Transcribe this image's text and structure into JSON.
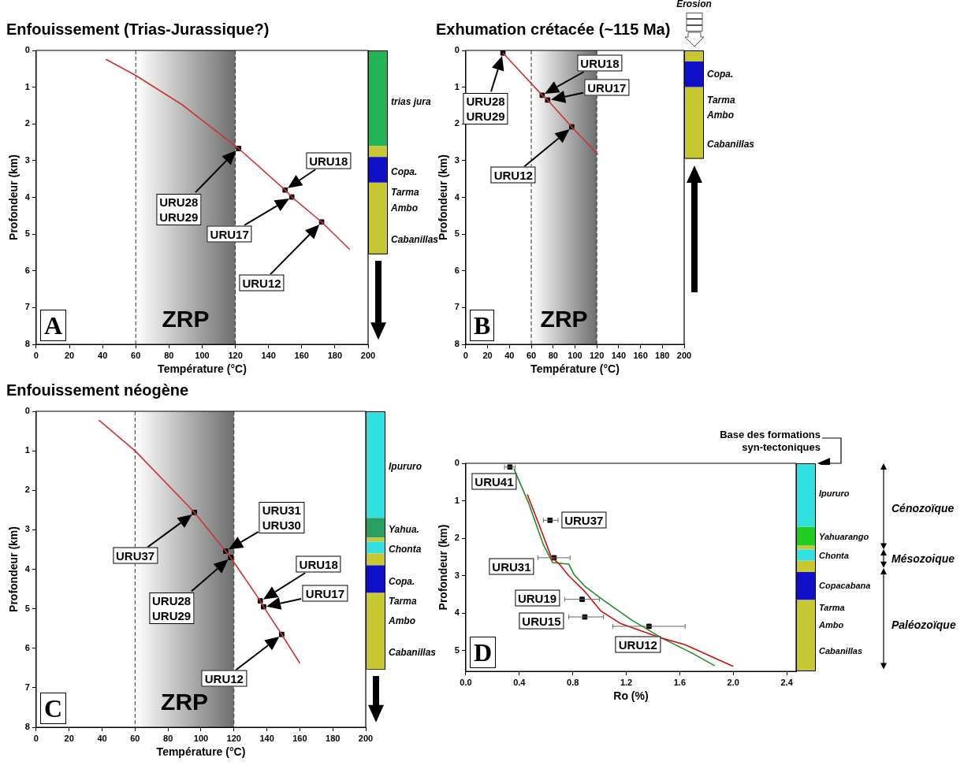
{
  "chart_data": [
    {
      "type": "line",
      "title": "Enfouissement (Trias-Jurassique?)",
      "xlabel": "Température (°C)",
      "ylabel": "Profondeur (km)",
      "xlim": [
        0,
        200
      ],
      "ylim": [
        8,
        0
      ],
      "xticks": [
        0,
        20,
        40,
        60,
        80,
        100,
        120,
        140,
        160,
        180,
        200
      ],
      "yticks": [
        0,
        1,
        2,
        3,
        4,
        5,
        6,
        7,
        8
      ],
      "series": [
        {
          "type": "line",
          "color": "#cc3333",
          "marker": "none",
          "x": [
            42,
            60,
            88,
            122,
            150,
            154,
            172,
            189
          ],
          "values": [
            0.24,
            0.68,
            1.48,
            2.67,
            3.8,
            3.99,
            4.67,
            5.42
          ]
        },
        {
          "type": "scatter",
          "color": "#000000",
          "marker": "square",
          "x": [
            122,
            150,
            154,
            172
          ],
          "values": [
            2.67,
            3.8,
            3.99,
            4.67
          ]
        }
      ],
      "bands": [
        {
          "axis": "x",
          "from": 60,
          "to": 120,
          "label": "ZRP",
          "color": "#6e6e6e"
        }
      ],
      "annotations": [
        "URU28\nURU29",
        "URU18",
        "URU17",
        "URU12",
        "trias jura",
        "Copa.",
        "Tarma",
        "Ambo",
        "Cabanillas",
        "A"
      ]
    },
    {
      "type": "line",
      "title": "Exhumation crétacée (~115 Ma)",
      "xlabel": "Température (°C)",
      "ylabel": "Profondeur (km)",
      "xlim": [
        0,
        200
      ],
      "ylim": [
        8,
        0
      ],
      "xticks": [
        0,
        20,
        40,
        60,
        80,
        100,
        120,
        140,
        160,
        180,
        200
      ],
      "yticks": [
        0,
        1,
        2,
        3,
        4,
        5,
        6,
        7,
        8
      ],
      "series": [
        {
          "type": "line",
          "color": "#cc3333",
          "marker": "none",
          "x": [
            34,
            70,
            75,
            97,
            121
          ],
          "values": [
            0.07,
            1.22,
            1.35,
            2.08,
            2.83
          ]
        },
        {
          "type": "scatter",
          "color": "#000000",
          "marker": "square",
          "x": [
            34,
            70,
            75,
            97
          ],
          "values": [
            0.07,
            1.22,
            1.35,
            2.08
          ]
        }
      ],
      "bands": [
        {
          "axis": "x",
          "from": 60,
          "to": 120,
          "label": "ZRP",
          "color": "#6e6e6e"
        }
      ],
      "annotations": [
        "URU28\nURU29",
        "URU18",
        "URU17",
        "URU12",
        "Copa.",
        "Tarma",
        "Ambo",
        "Cabanillas",
        "B",
        "Erosion"
      ]
    },
    {
      "type": "line",
      "title": "Enfouissement néogène",
      "xlabel": "Température (°C)",
      "ylabel": "Profondeur (km)",
      "xlim": [
        0,
        200
      ],
      "ylim": [
        8,
        0
      ],
      "xticks": [
        0,
        20,
        40,
        60,
        80,
        100,
        120,
        140,
        160,
        180,
        200
      ],
      "yticks": [
        0,
        1,
        2,
        3,
        4,
        5,
        6,
        7,
        8
      ],
      "series": [
        {
          "type": "line",
          "color": "#cc3333",
          "marker": "none",
          "x": [
            38,
            60,
            96,
            115,
            118,
            136,
            138,
            149,
            160
          ],
          "values": [
            0.22,
            1.0,
            2.56,
            3.54,
            3.7,
            4.8,
            4.95,
            5.65,
            6.38
          ]
        },
        {
          "type": "scatter",
          "color": "#000000",
          "marker": "square",
          "x": [
            96,
            115,
            118,
            136,
            138,
            149
          ],
          "values": [
            2.56,
            3.54,
            3.7,
            4.8,
            4.95,
            5.65
          ]
        }
      ],
      "bands": [
        {
          "axis": "x",
          "from": 60,
          "to": 120,
          "label": "ZRP",
          "color": "#6e6e6e"
        }
      ],
      "annotations": [
        "URU37",
        "URU31\nURU30",
        "URU28\nURU29",
        "URU18",
        "URU17",
        "URU12",
        "Ipururo",
        "Yahua.",
        "Chonta",
        "Copa.",
        "Tarma",
        "Ambo",
        "Cabanillas",
        "C"
      ]
    },
    {
      "type": "line",
      "xlabel": "Ro (%)",
      "ylabel": "Profondeur (km)",
      "xlim": [
        0,
        2.47
      ],
      "ylim": [
        5.55,
        0
      ],
      "xticks": [
        {
          "value": 0,
          "label": "0.0"
        },
        {
          "value": 0.4,
          "label": "0.4"
        },
        {
          "value": 0.8,
          "label": "0.8"
        },
        {
          "value": 1.2,
          "label": "1.2"
        },
        {
          "value": 1.6,
          "label": "1.6"
        },
        {
          "value": 2,
          "label": "2.0"
        },
        {
          "value": 2.4,
          "label": "2.4"
        }
      ],
      "yticks": [
        0,
        1,
        2,
        3,
        4,
        5
      ],
      "series": [
        {
          "type": "line",
          "color": "#cc1111",
          "marker": "none",
          "x": [
            0.46,
            0.56,
            0.64,
            0.7,
            0.77,
            0.89,
            1.01,
            1.16,
            1.47,
            1.64,
            2.0
          ],
          "values": [
            0.83,
            1.75,
            2.51,
            2.69,
            3.0,
            3.42,
            3.94,
            4.28,
            4.67,
            4.84,
            5.42
          ]
        },
        {
          "type": "line",
          "color": "#228b22",
          "marker": "none",
          "x": [
            0.36,
            0.47,
            0.58,
            0.65,
            0.77,
            0.81,
            0.89,
            1.02,
            1.24,
            1.47,
            1.7,
            1.86
          ],
          "values": [
            0.15,
            1.06,
            2.17,
            2.65,
            2.69,
            2.97,
            3.28,
            3.63,
            4.18,
            4.67,
            5.08,
            5.4
          ]
        },
        {
          "type": "scatter",
          "color": "#000000",
          "marker": "square",
          "x": [
            0.33,
            0.63,
            0.66,
            0.87,
            0.89,
            1.37
          ],
          "values": [
            0.1,
            1.52,
            2.52,
            3.63,
            4.1,
            4.35
          ],
          "xerrors": [
            [
              0.29,
              0.37
            ],
            [
              0.58,
              0.69
            ],
            [
              0.54,
              0.78
            ],
            [
              0.74,
              1.0
            ],
            [
              0.77,
              1.03
            ],
            [
              1.1,
              1.64
            ]
          ]
        }
      ],
      "annotations": [
        {
          "text": "URU41",
          "x": 0.33,
          "y": 0.1
        },
        {
          "text": "URU37",
          "x": 0.63,
          "y": 1.52
        },
        {
          "text": "URU31",
          "x": 0.66,
          "y": 2.52
        },
        {
          "text": "URU19",
          "x": 0.87,
          "y": 3.63
        },
        {
          "text": "URU15",
          "x": 0.89,
          "y": 4.1
        },
        {
          "text": "URU12",
          "x": 1.37,
          "y": 4.35
        },
        "Ipururo",
        "Yahuarango",
        "Chonta",
        "Copacabana",
        "Tarma",
        "Ambo",
        "Cabanillas",
        "Cénozoïque",
        "Mésozoique",
        "Paléozoïque",
        "Base des formations\nsyn-tectoniques",
        "D"
      ]
    }
  ]
}
